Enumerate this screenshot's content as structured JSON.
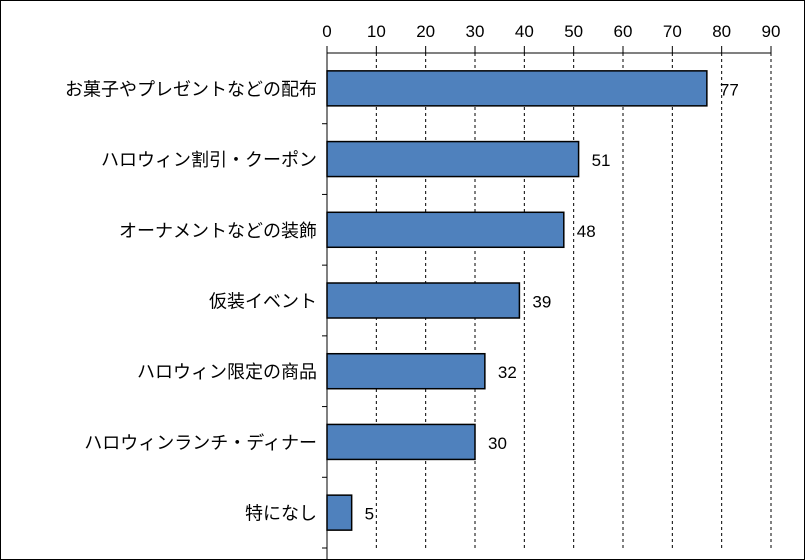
{
  "chart_data": {
    "type": "bar",
    "orientation": "horizontal",
    "categories": [
      "お菓子やプレゼントなどの配布",
      "ハロウィン割引・クーポン",
      "オーナメントなどの装飾",
      "仮装イベント",
      "ハロウィン限定の商品",
      "ハロウィンランチ・ディナー",
      "特になし"
    ],
    "values": [
      77,
      51,
      48,
      39,
      32,
      30,
      5
    ],
    "value_labels": [
      "77",
      "51",
      "48",
      "39",
      "32",
      "30",
      "5"
    ],
    "xlim": [
      0,
      90
    ],
    "xticks": [
      0,
      10,
      20,
      30,
      40,
      50,
      60,
      70,
      80,
      90
    ],
    "xtick_labels": [
      "0",
      "10",
      "20",
      "30",
      "40",
      "50",
      "60",
      "70",
      "80",
      "90"
    ],
    "x_axis_position": "top",
    "grid": true,
    "legend": "none",
    "colors": {
      "bar_fill": "#4F81BD",
      "bar_stroke": "#000000",
      "grid": "#000000"
    }
  }
}
